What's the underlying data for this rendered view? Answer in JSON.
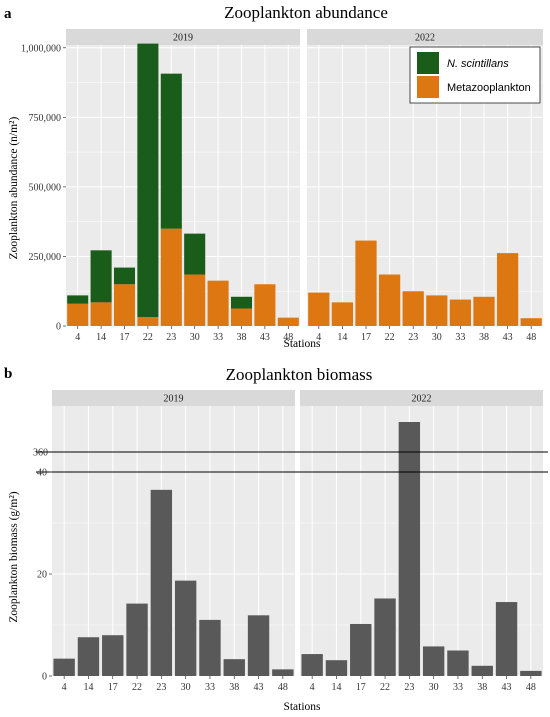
{
  "colors": {
    "scintillans": "#1a5c1a",
    "metazoo": "#dd7711",
    "biomass": "#595959",
    "panel_bg": "#ebebeb",
    "strip_bg": "#d9d9d9",
    "grid": "#ffffff"
  },
  "chart_data": [
    {
      "panel_letter": "a",
      "type": "bar",
      "stacked": true,
      "title": "Zooplankton abundance",
      "xlabel": "Stations",
      "ylabel": "Zooplankton abundance (n/m²)",
      "ylim": [
        0,
        1010000
      ],
      "yticks": [
        0,
        250000,
        500000,
        750000,
        1000000
      ],
      "ytick_labels": [
        "0",
        "250,000",
        "500,000",
        "750,000",
        "1,000,000"
      ],
      "categories": [
        "4",
        "14",
        "17",
        "22",
        "23",
        "30",
        "33",
        "38",
        "43",
        "48"
      ],
      "legend": [
        "N. scintillans",
        "Metazooplankton"
      ],
      "legend_position": "top-right",
      "facets": [
        {
          "label": "2019",
          "series": [
            {
              "name": "Metazooplankton",
              "values": [
                80000,
                85000,
                150000,
                32000,
                350000,
                185000,
                163000,
                63000,
                150000,
                30000
              ]
            },
            {
              "name": "N. scintillans",
              "values": [
                30000,
                187000,
                60000,
                983000,
                557000,
                147000,
                0,
                42000,
                0,
                0
              ]
            }
          ]
        },
        {
          "label": "2022",
          "series": [
            {
              "name": "Metazooplankton",
              "values": [
                120000,
                85000,
                307000,
                185000,
                125000,
                110000,
                95000,
                105000,
                262000,
                28000
              ]
            },
            {
              "name": "N. scintillans",
              "values": [
                0,
                0,
                0,
                0,
                0,
                0,
                0,
                0,
                0,
                0
              ]
            }
          ]
        }
      ]
    },
    {
      "panel_letter": "b",
      "type": "bar",
      "title": "Zooplankton biomass",
      "xlabel": "Stations",
      "ylabel": "Zooplankton biomass (g/m²)",
      "axis_break": true,
      "ylim_lower": [
        0,
        40
      ],
      "yticks_lower": [
        0,
        20,
        40
      ],
      "ytick_upper_label": "360",
      "categories": [
        "4",
        "14",
        "17",
        "22",
        "23",
        "30",
        "33",
        "38",
        "43",
        "48"
      ],
      "facets": [
        {
          "label": "2019",
          "values": [
            3.4,
            7.6,
            8.0,
            14.2,
            36.5,
            18.7,
            11.0,
            3.3,
            11.9,
            1.3
          ]
        },
        {
          "label": "2022",
          "values": [
            4.3,
            3.1,
            10.2,
            15.2,
            365,
            5.8,
            5.0,
            2.0,
            14.5,
            1.0
          ]
        }
      ]
    }
  ]
}
